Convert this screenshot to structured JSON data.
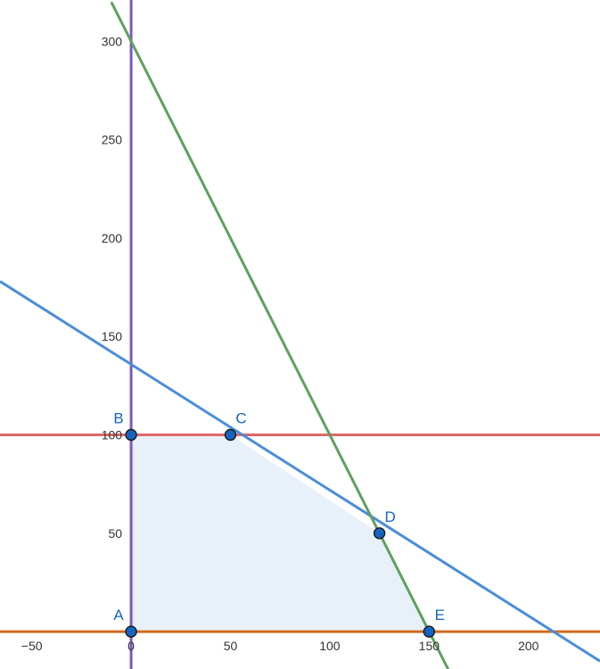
{
  "chart_data": {
    "type": "line",
    "title": "",
    "xlabel": "",
    "ylabel": "",
    "xlim": [
      -66,
      236
    ],
    "ylim": [
      -19,
      321
    ],
    "x_ticks": [
      -50,
      0,
      50,
      100,
      150,
      200
    ],
    "y_ticks": [
      50,
      100,
      150,
      200,
      250,
      300
    ],
    "grid": false,
    "lines": [
      {
        "kind": "vertical",
        "x": 0,
        "color": "#7e57c2"
      },
      {
        "kind": "horizontal",
        "y": 0,
        "color": "#d2691e"
      },
      {
        "kind": "horizontal",
        "y": 100,
        "color": "#e06666"
      },
      {
        "kind": "segment",
        "from": [
          -66,
          178
        ],
        "to": [
          236,
          -15
        ],
        "color": "#4a8ed8"
      },
      {
        "kind": "segment",
        "from": [
          -10,
          320
        ],
        "to": [
          160,
          -20
        ],
        "color": "#5fa05f"
      }
    ],
    "feasible_region": {
      "vertices": [
        [
          0,
          0
        ],
        [
          0,
          100
        ],
        [
          50,
          100
        ],
        [
          125,
          50
        ],
        [
          150,
          0
        ]
      ],
      "fill": "#e8f0f9"
    },
    "points": [
      {
        "label": "A",
        "x": 0,
        "y": 0
      },
      {
        "label": "B",
        "x": 0,
        "y": 100
      },
      {
        "label": "C",
        "x": 50,
        "y": 100
      },
      {
        "label": "D",
        "x": 125,
        "y": 50
      },
      {
        "label": "E",
        "x": 150,
        "y": 0
      }
    ],
    "point_color": "#1565c0"
  }
}
